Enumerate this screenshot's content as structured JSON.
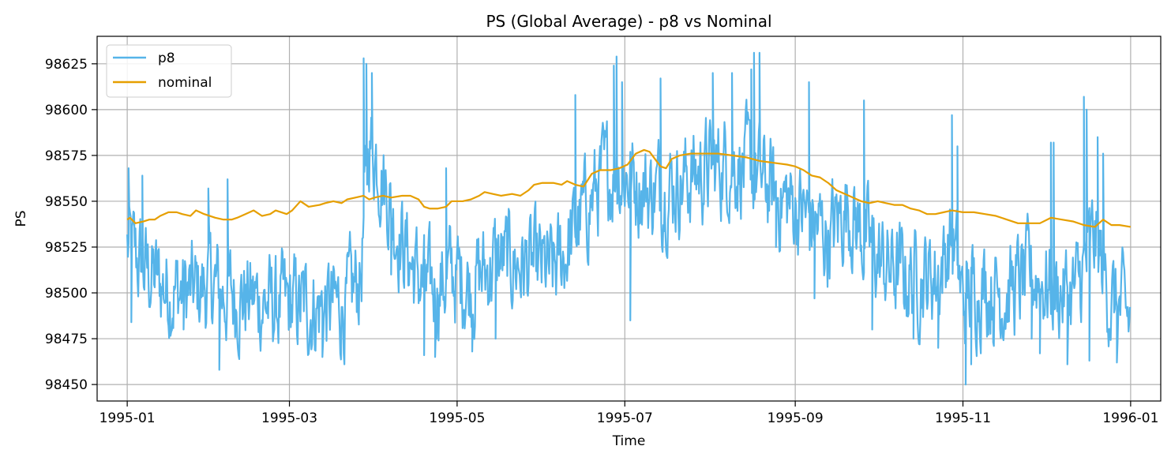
{
  "chart_data": {
    "type": "line",
    "title": "PS (Global Average) - p8 vs Nominal",
    "xlabel": "Time",
    "ylabel": "PS",
    "xlim": [
      -10.95,
      375.95
    ],
    "ylim": [
      98441,
      98640
    ],
    "grid": true,
    "legend_position": "top-left",
    "x_ticks": [
      {
        "label": "1995-01",
        "day": 0
      },
      {
        "label": "1995-03",
        "day": 59
      },
      {
        "label": "1995-05",
        "day": 120
      },
      {
        "label": "1995-07",
        "day": 181
      },
      {
        "label": "1995-09",
        "day": 243
      },
      {
        "label": "1995-11",
        "day": 304
      },
      {
        "label": "1996-01",
        "day": 365
      }
    ],
    "y_ticks": [
      98450,
      98475,
      98500,
      98525,
      98550,
      98575,
      98600,
      98625
    ],
    "series": [
      {
        "name": "p8",
        "color": "#56b4e9",
        "kind": "noisy",
        "noise_amplitude": 22,
        "baseline_anchors": [
          [
            0,
            98525
          ],
          [
            5,
            98515
          ],
          [
            12,
            98505
          ],
          [
            20,
            98500
          ],
          [
            25,
            98500
          ],
          [
            30,
            98505
          ],
          [
            35,
            98500
          ],
          [
            45,
            98497
          ],
          [
            55,
            98492
          ],
          [
            60,
            98493
          ],
          [
            70,
            98492
          ],
          [
            80,
            98493
          ],
          [
            85,
            98510
          ],
          [
            88,
            98585
          ],
          [
            92,
            98570
          ],
          [
            97,
            98540
          ],
          [
            105,
            98510
          ],
          [
            110,
            98500
          ],
          [
            118,
            98510
          ],
          [
            125,
            98505
          ],
          [
            135,
            98518
          ],
          [
            145,
            98515
          ],
          [
            155,
            98510
          ],
          [
            165,
            98540
          ],
          [
            172,
            98560
          ],
          [
            178,
            98568
          ],
          [
            183,
            98563
          ],
          [
            190,
            98555
          ],
          [
            200,
            98560
          ],
          [
            210,
            98567
          ],
          [
            220,
            98572
          ],
          [
            228,
            98565
          ],
          [
            235,
            98555
          ],
          [
            245,
            98545
          ],
          [
            255,
            98530
          ],
          [
            262,
            98548
          ],
          [
            268,
            98530
          ],
          [
            275,
            98515
          ],
          [
            285,
            98508
          ],
          [
            295,
            98510
          ],
          [
            300,
            98530
          ],
          [
            304,
            98495
          ],
          [
            310,
            98505
          ],
          [
            320,
            98500
          ],
          [
            330,
            98510
          ],
          [
            338,
            98500
          ],
          [
            345,
            98500
          ],
          [
            352,
            98530
          ],
          [
            358,
            98495
          ],
          [
            365,
            98485
          ]
        ],
        "spikes": [
          [
            0.5,
            98568
          ],
          [
            1.5,
            98484
          ],
          [
            5.5,
            98564
          ],
          [
            20.5,
            98480
          ],
          [
            29.5,
            98557
          ],
          [
            33.5,
            98458
          ],
          [
            36.5,
            98562
          ],
          [
            71,
            98465
          ],
          [
            86,
            98628
          ],
          [
            87,
            98625
          ],
          [
            89,
            98620
          ],
          [
            96,
            98510
          ],
          [
            108,
            98466
          ],
          [
            112,
            98465
          ],
          [
            116,
            98568
          ],
          [
            125.5,
            98468
          ],
          [
            134,
            98475
          ],
          [
            163,
            98608
          ],
          [
            177,
            98624
          ],
          [
            178,
            98629
          ],
          [
            180,
            98615
          ],
          [
            183,
            98485
          ],
          [
            194,
            98617
          ],
          [
            213,
            98620
          ],
          [
            220,
            98620
          ],
          [
            227,
            98622
          ],
          [
            228,
            98631
          ],
          [
            230,
            98631
          ],
          [
            236,
            98525
          ],
          [
            248,
            98615
          ],
          [
            250,
            98497
          ],
          [
            265,
            98530
          ],
          [
            268,
            98605
          ],
          [
            271,
            98480
          ],
          [
            286,
            98475
          ],
          [
            295,
            98470
          ],
          [
            300,
            98597
          ],
          [
            302,
            98580
          ],
          [
            305,
            98450
          ],
          [
            307,
            98461
          ],
          [
            315,
            98473
          ],
          [
            329,
            98475
          ],
          [
            332,
            98467
          ],
          [
            336,
            98582
          ],
          [
            337,
            98582
          ],
          [
            342,
            98461
          ],
          [
            348,
            98607
          ],
          [
            349,
            98600
          ],
          [
            350,
            98463
          ],
          [
            353,
            98585
          ],
          [
            355,
            98576
          ],
          [
            360,
            98462
          ]
        ]
      },
      {
        "name": "nominal",
        "color": "#e69f00",
        "kind": "smooth",
        "points": [
          [
            0,
            98540
          ],
          [
            1,
            98541
          ],
          [
            3,
            98538
          ],
          [
            6,
            98539
          ],
          [
            8,
            98540
          ],
          [
            10,
            98540
          ],
          [
            12,
            98542
          ],
          [
            15,
            98544
          ],
          [
            18,
            98544
          ],
          [
            20,
            98543
          ],
          [
            23,
            98542
          ],
          [
            25,
            98545
          ],
          [
            28,
            98543
          ],
          [
            32,
            98541
          ],
          [
            35,
            98540
          ],
          [
            38,
            98540
          ],
          [
            40,
            98541
          ],
          [
            43,
            98543
          ],
          [
            46,
            98545
          ],
          [
            49,
            98542
          ],
          [
            52,
            98543
          ],
          [
            54,
            98545
          ],
          [
            58,
            98543
          ],
          [
            60,
            98545
          ],
          [
            63,
            98550
          ],
          [
            66,
            98547
          ],
          [
            70,
            98548
          ],
          [
            72,
            98549
          ],
          [
            75,
            98550
          ],
          [
            78,
            98549
          ],
          [
            80,
            98551
          ],
          [
            83,
            98552
          ],
          [
            86,
            98553
          ],
          [
            88,
            98551
          ],
          [
            90,
            98552
          ],
          [
            93,
            98553
          ],
          [
            96,
            98552
          ],
          [
            100,
            98553
          ],
          [
            103,
            98553
          ],
          [
            106,
            98551
          ],
          [
            108,
            98547
          ],
          [
            110,
            98546
          ],
          [
            113,
            98546
          ],
          [
            116,
            98547
          ],
          [
            118,
            98550
          ],
          [
            122,
            98550
          ],
          [
            125,
            98551
          ],
          [
            128,
            98553
          ],
          [
            130,
            98555
          ],
          [
            133,
            98554
          ],
          [
            136,
            98553
          ],
          [
            140,
            98554
          ],
          [
            143,
            98553
          ],
          [
            146,
            98556
          ],
          [
            148,
            98559
          ],
          [
            151,
            98560
          ],
          [
            155,
            98560
          ],
          [
            158,
            98559
          ],
          [
            160,
            98561
          ],
          [
            163,
            98559
          ],
          [
            166,
            98558
          ],
          [
            169,
            98565
          ],
          [
            172,
            98567
          ],
          [
            176,
            98567
          ],
          [
            179,
            98568
          ],
          [
            182,
            98570
          ],
          [
            185,
            98576
          ],
          [
            188,
            98578
          ],
          [
            190,
            98577
          ],
          [
            192,
            98573
          ],
          [
            194,
            98569
          ],
          [
            196,
            98568
          ],
          [
            198,
            98573
          ],
          [
            201,
            98575
          ],
          [
            205,
            98576
          ],
          [
            210,
            98576
          ],
          [
            215,
            98576
          ],
          [
            220,
            98575
          ],
          [
            225,
            98574
          ],
          [
            230,
            98572
          ],
          [
            235,
            98571
          ],
          [
            240,
            98570
          ],
          [
            243,
            98569
          ],
          [
            246,
            98567
          ],
          [
            249,
            98564
          ],
          [
            252,
            98563
          ],
          [
            255,
            98560
          ],
          [
            258,
            98556
          ],
          [
            261,
            98554
          ],
          [
            264,
            98552
          ],
          [
            267,
            98550
          ],
          [
            270,
            98549
          ],
          [
            273,
            98550
          ],
          [
            276,
            98549
          ],
          [
            279,
            98548
          ],
          [
            282,
            98548
          ],
          [
            285,
            98546
          ],
          [
            288,
            98545
          ],
          [
            291,
            98543
          ],
          [
            294,
            98543
          ],
          [
            297,
            98544
          ],
          [
            300,
            98545
          ],
          [
            304,
            98544
          ],
          [
            308,
            98544
          ],
          [
            312,
            98543
          ],
          [
            316,
            98542
          ],
          [
            320,
            98540
          ],
          [
            324,
            98538
          ],
          [
            328,
            98538
          ],
          [
            332,
            98538
          ],
          [
            336,
            98541
          ],
          [
            340,
            98540
          ],
          [
            344,
            98539
          ],
          [
            348,
            98537
          ],
          [
            352,
            98536
          ],
          [
            355,
            98540
          ],
          [
            358,
            98537
          ],
          [
            361,
            98537
          ],
          [
            365,
            98536
          ]
        ]
      }
    ]
  }
}
